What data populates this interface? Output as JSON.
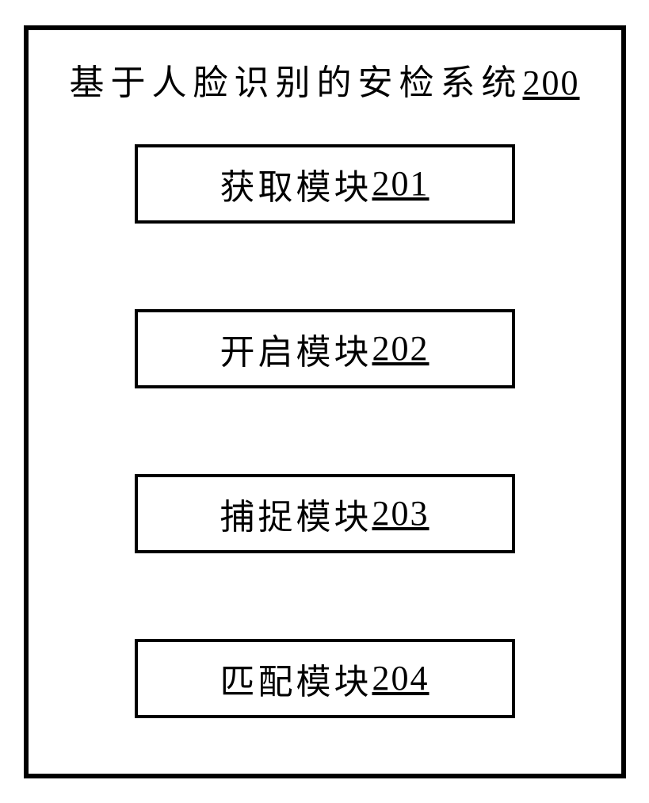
{
  "diagram": {
    "type": "block-diagram",
    "background_color": "#ffffff",
    "border_color": "#000000",
    "outer_border_width": 6,
    "module_border_width": 4,
    "text_color": "#000000",
    "title_fontsize": 44,
    "module_fontsize": 44,
    "container_width": 760,
    "container_height": 950,
    "module_box_width": 480,
    "module_box_height": 100,
    "title": {
      "text": "基于人脸识别的安检系统",
      "number": "200"
    },
    "modules": [
      {
        "label": "获取模块",
        "number": "201"
      },
      {
        "label": "开启模块",
        "number": "202"
      },
      {
        "label": "捕捉模块",
        "number": "203"
      },
      {
        "label": "匹配模块",
        "number": "204"
      }
    ]
  }
}
